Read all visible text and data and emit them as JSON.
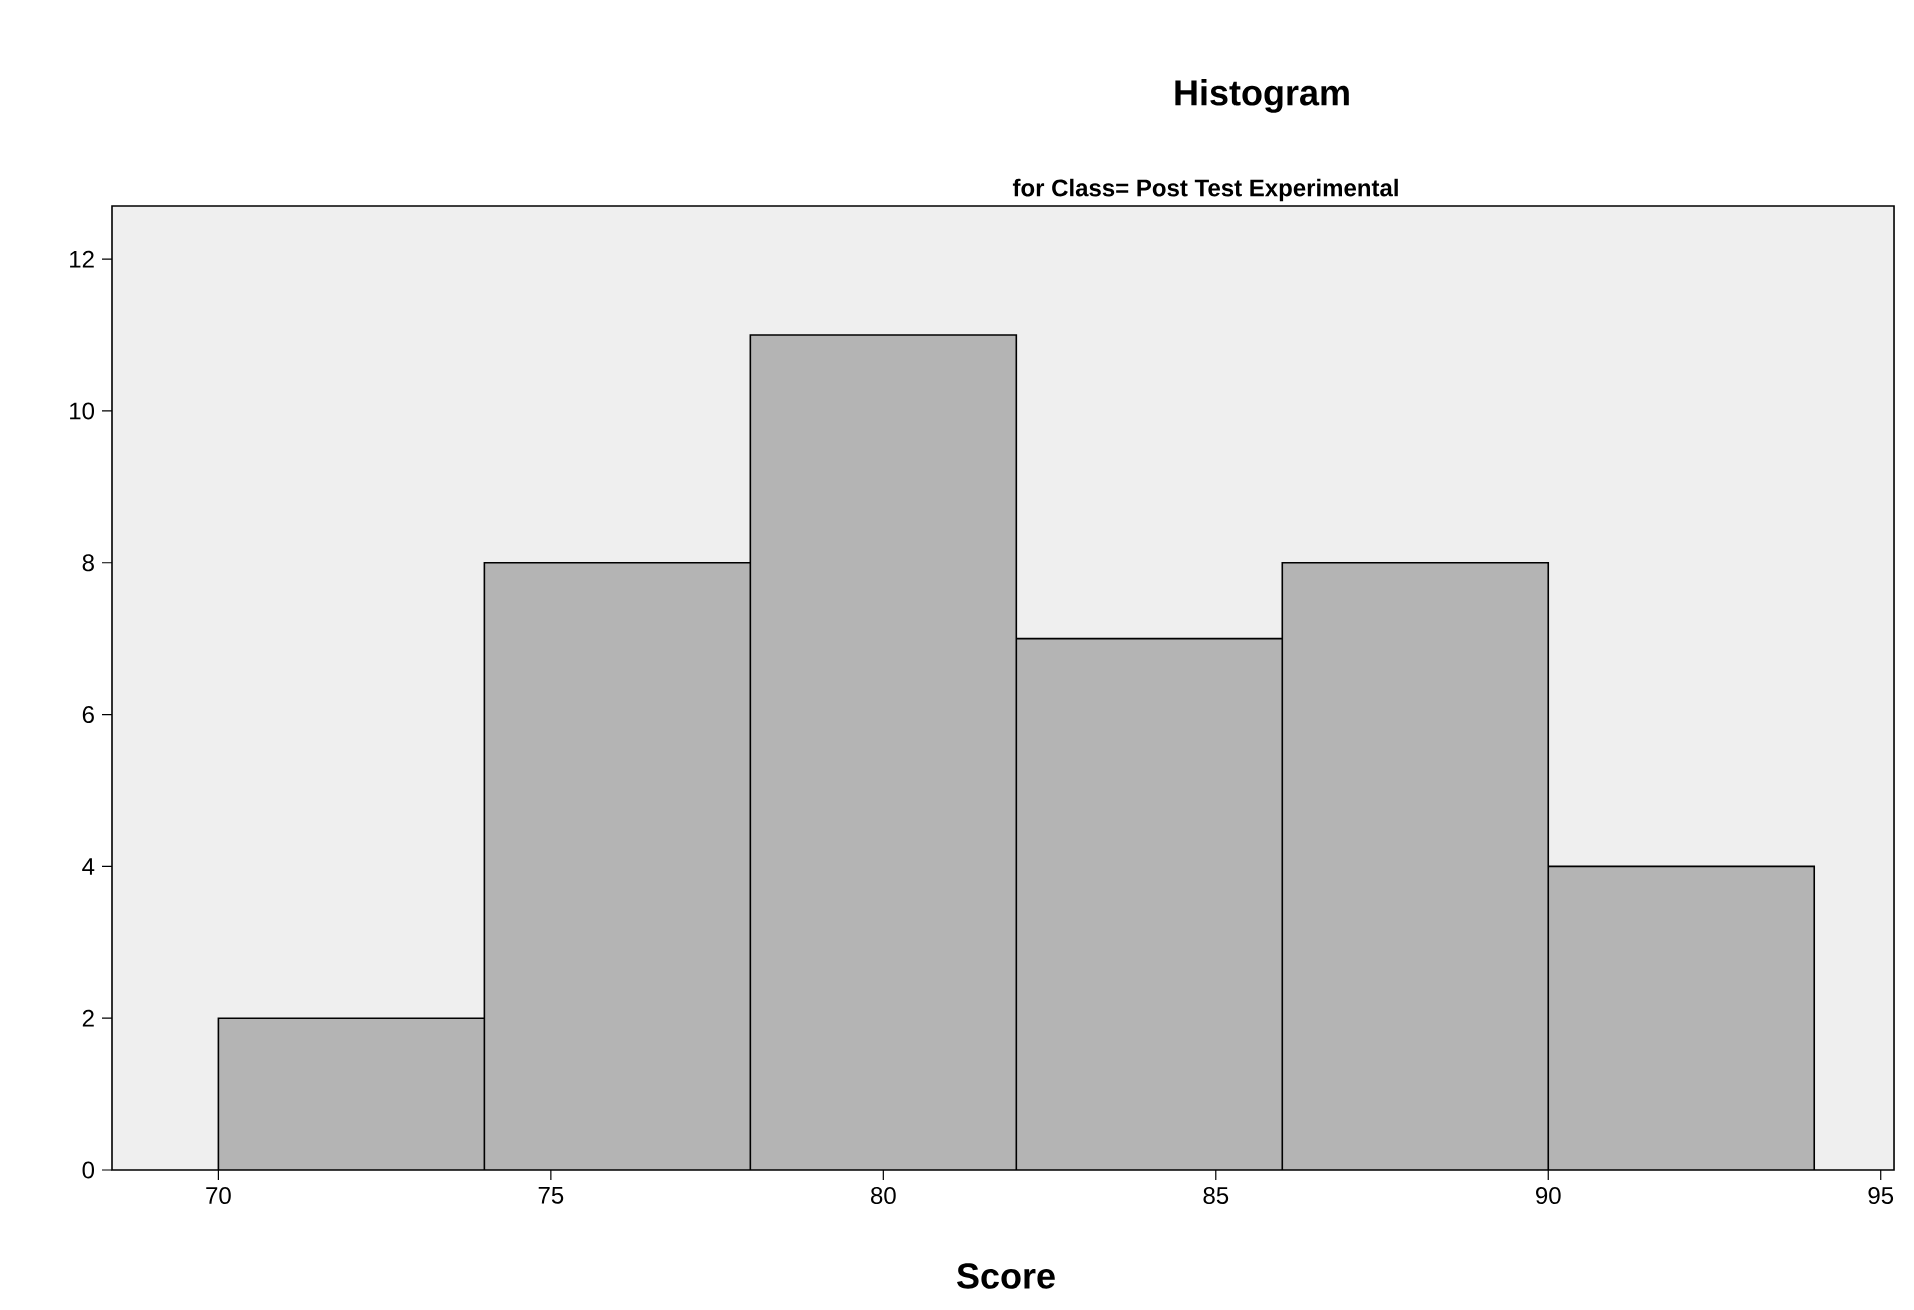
{
  "chart_data": {
    "type": "histogram",
    "title": "Histogram",
    "subtitle": "for Class= Post Test Experimental",
    "xlabel": "Score",
    "bins": [
      70,
      74,
      78,
      82,
      86,
      90,
      94
    ],
    "values": [
      2,
      8,
      11,
      7,
      8,
      4
    ],
    "color": "#b4b4b4",
    "xlim": [
      68.4,
      95.2
    ],
    "ylim": [
      0,
      12.7
    ],
    "xticks": [
      70,
      75,
      80,
      85,
      90,
      95
    ],
    "yticks": [
      0,
      2,
      4,
      6,
      8,
      10,
      12
    ],
    "grid": false
  }
}
